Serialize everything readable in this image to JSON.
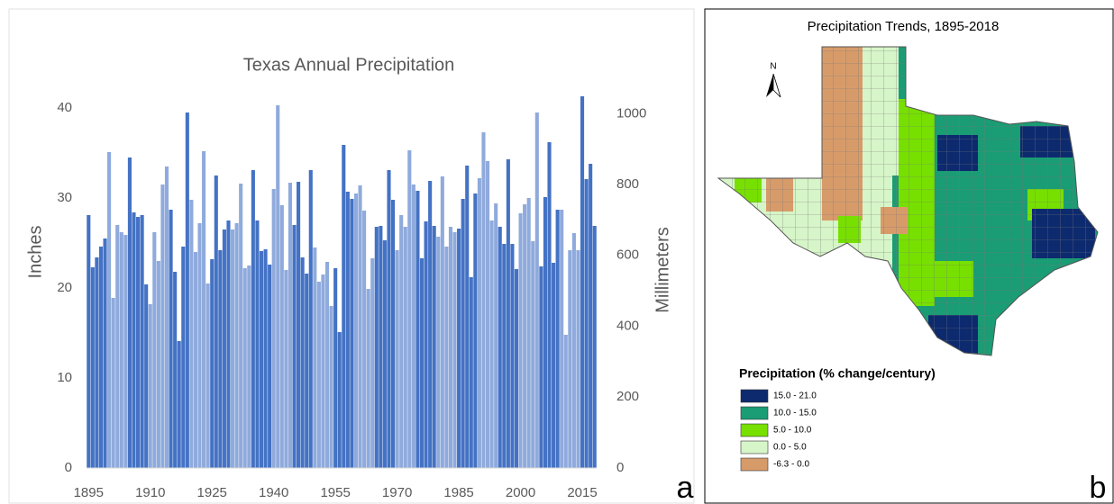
{
  "chart_data": {
    "type": "bar",
    "title": "Texas Annual Precipitation",
    "panel_label": "a",
    "ylabel": "Inches",
    "y2label": "Millimeters",
    "categories": [
      "1895",
      null,
      null,
      null,
      null,
      null,
      null,
      null,
      null,
      null,
      null,
      null,
      null,
      null,
      null,
      "1910",
      null,
      null,
      null,
      null,
      null,
      null,
      null,
      null,
      null,
      null,
      null,
      null,
      null,
      null,
      "1925",
      null,
      null,
      null,
      null,
      null,
      null,
      null,
      null,
      null,
      null,
      null,
      null,
      null,
      null,
      "1940",
      null,
      null,
      null,
      null,
      null,
      null,
      null,
      null,
      null,
      null,
      null,
      null,
      null,
      null,
      "1955",
      null,
      null,
      null,
      null,
      null,
      null,
      null,
      null,
      null,
      null,
      null,
      null,
      null,
      null,
      "1970",
      null,
      null,
      null,
      null,
      null,
      null,
      null,
      null,
      null,
      null,
      null,
      null,
      null,
      null,
      "1985",
      null,
      null,
      null,
      null,
      null,
      null,
      null,
      null,
      null,
      null,
      null,
      null,
      null,
      null,
      "2000",
      null,
      null,
      null,
      null,
      null,
      null,
      null,
      null,
      null,
      null,
      null,
      null,
      null,
      null,
      "2015",
      null,
      null,
      null
    ],
    "values": [
      28.1,
      22.3,
      23.4,
      24.6,
      25.5,
      35.1,
      18.9,
      27.0,
      26.2,
      25.9,
      34.5,
      28.4,
      27.9,
      28.1,
      20.4,
      18.2,
      26.2,
      23.0,
      31.5,
      33.5,
      28.7,
      21.8,
      14.1,
      24.6,
      39.5,
      29.8,
      24.0,
      27.2,
      35.2,
      20.5,
      23.2,
      32.5,
      24.2,
      26.5,
      27.5,
      26.5,
      27.2,
      31.6,
      22.2,
      22.5,
      33.1,
      27.5,
      24.1,
      24.3,
      22.6,
      31.0,
      40.3,
      29.2,
      22.0,
      31.7,
      27.0,
      31.8,
      23.4,
      21.6,
      33.1,
      24.5,
      20.7,
      21.5,
      22.9,
      18.0,
      22.2,
      15.1,
      35.9,
      30.7,
      29.9,
      30.5,
      31.4,
      28.6,
      19.9,
      23.3,
      26.8,
      26.9,
      25.3,
      33.1,
      29.8,
      24.2,
      28.1,
      26.8,
      35.3,
      31.5,
      30.8,
      23.3,
      27.4,
      31.9,
      26.9,
      25.7,
      32.4,
      24.6,
      26.8,
      26.2,
      26.6,
      29.9,
      33.6,
      21.2,
      30.5,
      32.2,
      37.3,
      34.1,
      27.5,
      29.4,
      26.8,
      24.9,
      34.3,
      24.9,
      22.1,
      28.3,
      29.3,
      30.0,
      25.2,
      39.5,
      22.4,
      30.1,
      36.2,
      22.8,
      28.7,
      28.7,
      14.8,
      24.2,
      26.1,
      24.2,
      41.3,
      32.1,
      33.8,
      26.9
    ],
    "colors": [
      "#4472c4",
      "#4472c4",
      "#4472c4",
      "#4472c4",
      "#4472c4",
      "#8faadc",
      "#8faadc",
      "#8faadc",
      "#8faadc",
      "#8faadc",
      "#4472c4",
      "#4472c4",
      "#4472c4",
      "#4472c4",
      "#4472c4",
      "#8faadc",
      "#8faadc",
      "#8faadc",
      "#8faadc",
      "#8faadc",
      "#4472c4",
      "#4472c4",
      "#4472c4",
      "#4472c4",
      "#4472c4",
      "#8faadc",
      "#8faadc",
      "#8faadc",
      "#8faadc",
      "#8faadc",
      "#4472c4",
      "#4472c4",
      "#4472c4",
      "#4472c4",
      "#4472c4",
      "#8faadc",
      "#8faadc",
      "#8faadc",
      "#8faadc",
      "#8faadc",
      "#4472c4",
      "#4472c4",
      "#4472c4",
      "#4472c4",
      "#4472c4",
      "#8faadc",
      "#8faadc",
      "#8faadc",
      "#8faadc",
      "#8faadc",
      "#4472c4",
      "#4472c4",
      "#4472c4",
      "#4472c4",
      "#4472c4",
      "#8faadc",
      "#8faadc",
      "#8faadc",
      "#8faadc",
      "#8faadc",
      "#4472c4",
      "#4472c4",
      "#4472c4",
      "#4472c4",
      "#4472c4",
      "#8faadc",
      "#8faadc",
      "#8faadc",
      "#8faadc",
      "#8faadc",
      "#4472c4",
      "#4472c4",
      "#4472c4",
      "#4472c4",
      "#4472c4",
      "#8faadc",
      "#8faadc",
      "#8faadc",
      "#8faadc",
      "#8faadc",
      "#4472c4",
      "#4472c4",
      "#4472c4",
      "#4472c4",
      "#4472c4",
      "#8faadc",
      "#8faadc",
      "#8faadc",
      "#8faadc",
      "#8faadc",
      "#4472c4",
      "#4472c4",
      "#4472c4",
      "#4472c4",
      "#4472c4",
      "#8faadc",
      "#8faadc",
      "#8faadc",
      "#8faadc",
      "#8faadc",
      "#4472c4",
      "#4472c4",
      "#4472c4",
      "#4472c4",
      "#4472c4",
      "#8faadc",
      "#8faadc",
      "#8faadc",
      "#8faadc",
      "#8faadc",
      "#4472c4",
      "#4472c4",
      "#4472c4",
      "#4472c4",
      "#4472c4",
      "#8faadc",
      "#8faadc",
      "#8faadc",
      "#8faadc",
      "#8faadc",
      "#4472c4",
      "#4472c4",
      "#4472c4",
      "#4472c4"
    ],
    "ylim": [
      0,
      42
    ],
    "yticks": [
      0,
      10,
      20,
      30,
      40
    ],
    "y2lim": [
      0,
      1066.8
    ],
    "y2ticks": [
      0,
      200,
      400,
      600,
      800,
      1000
    ],
    "grid": false
  },
  "map": {
    "title": "Precipitation Trends, 1895-2018",
    "panel_label": "b",
    "north": "N",
    "legend_title": "Precipitation (% change/century)",
    "legend": [
      {
        "label": "15.0 - 21.0",
        "color": "#0d2a6e"
      },
      {
        "label": "10.0 - 15.0",
        "color": "#1a9c74"
      },
      {
        "label": "5.0 - 10.0",
        "color": "#77e000"
      },
      {
        "label": "0.0 - 5.0",
        "color": "#d6f5c8"
      },
      {
        "label": "-6.3 - 0.0",
        "color": "#d79b6a"
      }
    ]
  }
}
